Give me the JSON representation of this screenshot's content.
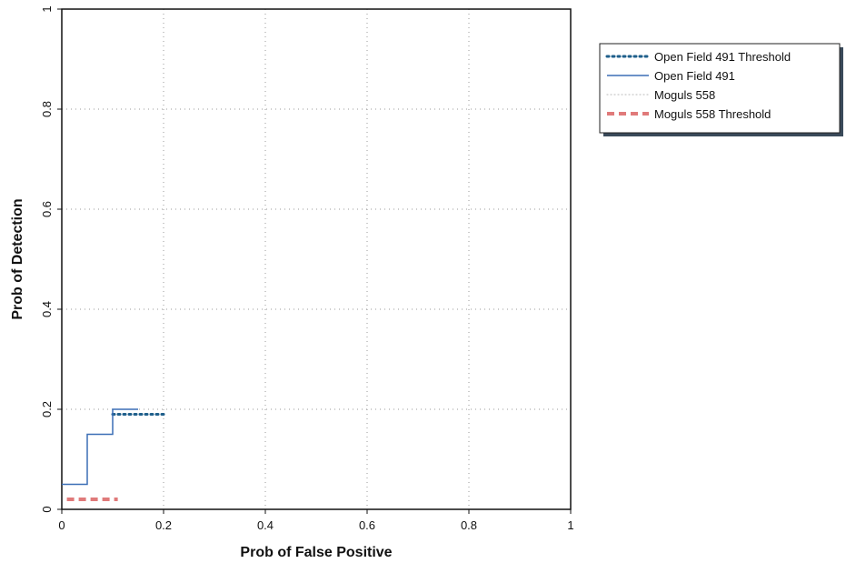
{
  "chart_data": {
    "type": "line",
    "xlabel": "Prob of False Positive",
    "ylabel": "Prob of Detection",
    "xlim": [
      0,
      1
    ],
    "ylim": [
      0,
      1
    ],
    "x_ticks": [
      "0",
      "0.2",
      "0.4",
      "0.6",
      "0.8",
      "1"
    ],
    "y_ticks": [
      "0",
      "0.2",
      "0.4",
      "0.6",
      "0.8",
      "1"
    ],
    "grid": true,
    "legend_placement": "outside-right-top",
    "series": [
      {
        "name": "Open Field 491 Threshold",
        "style": "dotted",
        "color": "#1f5f8b",
        "x": [
          0.1,
          0.2
        ],
        "y": [
          0.19,
          0.19
        ]
      },
      {
        "name": "Open Field 491",
        "style": "solid",
        "color": "#3b6fb6",
        "x": [
          0,
          0.05,
          0.05,
          0.1,
          0.1,
          0.15
        ],
        "y": [
          0.05,
          0.05,
          0.15,
          0.15,
          0.2,
          0.2
        ]
      },
      {
        "name": "Moguls 558",
        "style": "light-dotted",
        "color": "#c8c8c8",
        "x": [],
        "y": []
      },
      {
        "name": "Moguls 558 Threshold",
        "style": "dashed",
        "color": "#e07a7a",
        "x": [
          0.01,
          0.11
        ],
        "y": [
          0.02,
          0.02
        ]
      }
    ]
  }
}
